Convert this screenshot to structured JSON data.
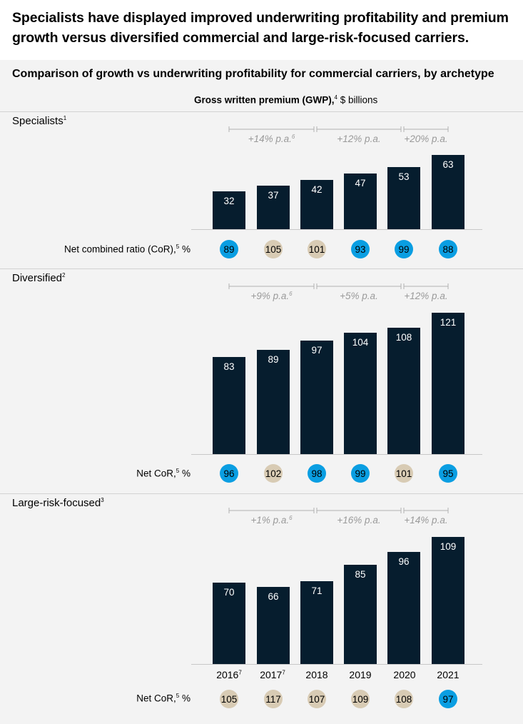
{
  "headline": "Specialists have displayed improved underwriting profitability and premium growth versus diversified commercial and large-risk-focused carriers.",
  "subtitle": "Comparison of growth vs underwriting profitability for commercial carriers, by archetype",
  "gwp_label": {
    "bold": "Gross written premium (GWP),",
    "sup": "4",
    "unit": " $ billions"
  },
  "colors": {
    "bar": "#061d2e",
    "profitable": "#0a9ee2",
    "unprofitable": "#d8cbb4",
    "growth_text": "#9a9a9a",
    "bracket": "#b0b0b0"
  },
  "years": [
    {
      "label": "2016",
      "sup": "7"
    },
    {
      "label": "2017",
      "sup": "7"
    },
    {
      "label": "2018",
      "sup": ""
    },
    {
      "label": "2019",
      "sup": ""
    },
    {
      "label": "2020",
      "sup": ""
    },
    {
      "label": "2021",
      "sup": ""
    }
  ],
  "chart_data": [
    {
      "type": "bar",
      "title": "Specialists",
      "title_sup": "1",
      "categories": [
        "2016",
        "2017",
        "2018",
        "2019",
        "2020",
        "2021"
      ],
      "values": [
        32,
        37,
        42,
        47,
        53,
        63
      ],
      "ylim": [
        0,
        63
      ],
      "growth": [
        {
          "text": "+14% p.a.",
          "sup": "6"
        },
        {
          "text": "+12% p.a.",
          "sup": ""
        },
        {
          "text": "+20% p.a.",
          "sup": ""
        }
      ],
      "cor_label": "Net combined ratio (CoR),",
      "cor_sup": "5",
      "cor_unit": " %",
      "cor_values": [
        89,
        105,
        101,
        93,
        99,
        88
      ]
    },
    {
      "type": "bar",
      "title": "Diversified",
      "title_sup": "2",
      "categories": [
        "2016",
        "2017",
        "2018",
        "2019",
        "2020",
        "2021"
      ],
      "values": [
        83,
        89,
        97,
        104,
        108,
        121
      ],
      "ylim": [
        0,
        121
      ],
      "growth": [
        {
          "text": "+9% p.a.",
          "sup": "6"
        },
        {
          "text": "+5% p.a.",
          "sup": ""
        },
        {
          "text": "+12% p.a.",
          "sup": ""
        }
      ],
      "cor_label": "Net CoR,",
      "cor_sup": "5",
      "cor_unit": " %",
      "cor_values": [
        96,
        102,
        98,
        99,
        101,
        95
      ]
    },
    {
      "type": "bar",
      "title": "Large-risk-focused",
      "title_sup": "3",
      "categories": [
        "2016",
        "2017",
        "2018",
        "2019",
        "2020",
        "2021"
      ],
      "values": [
        70,
        66,
        71,
        85,
        96,
        109
      ],
      "ylim": [
        0,
        109
      ],
      "growth": [
        {
          "text": "+1% p.a.",
          "sup": "6"
        },
        {
          "text": "+16% p.a.",
          "sup": ""
        },
        {
          "text": "+14% p.a.",
          "sup": ""
        }
      ],
      "cor_label": "Net CoR,",
      "cor_sup": "5",
      "cor_unit": " %",
      "cor_values": [
        105,
        117,
        107,
        109,
        108,
        97
      ]
    }
  ]
}
